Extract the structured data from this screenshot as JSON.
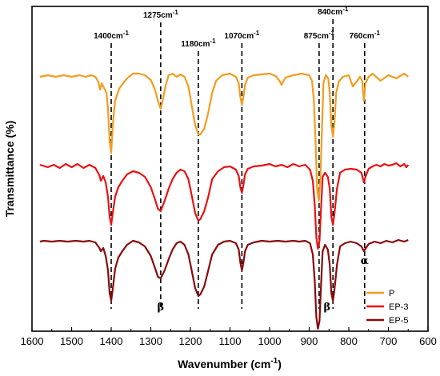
{
  "chart_data": {
    "type": "line",
    "xlabel": "Wavenumber (cm",
    "xlabel_sup": "-1",
    "xlabel_close": ")",
    "ylabel": "Transmittance (%)",
    "xlim": [
      1600,
      600
    ],
    "x_ticks": [
      "1600",
      "1500",
      "1400",
      "1300",
      "1200",
      "1100",
      "1000",
      "900",
      "800",
      "700",
      "600"
    ],
    "y_ticks_shown": false,
    "grid": false,
    "legend_position": "bottom-right",
    "series": [
      {
        "name": "P",
        "color": "#f39c1f",
        "offset": 2.1,
        "points": [
          [
            650,
            0.1
          ],
          [
            660,
            0.14
          ],
          [
            680,
            0.08
          ],
          [
            700,
            0.12
          ],
          [
            720,
            0.05
          ],
          [
            740,
            0.14
          ],
          [
            750,
            0.1
          ],
          [
            758,
            0.02
          ],
          [
            762,
            -0.2
          ],
          [
            766,
            0.05
          ],
          [
            772,
            0.1
          ],
          [
            780,
            0.04
          ],
          [
            790,
            -0.02
          ],
          [
            800,
            0.12
          ],
          [
            815,
            0.1
          ],
          [
            825,
            0.04
          ],
          [
            832,
            -0.1
          ],
          [
            836,
            -0.45
          ],
          [
            840,
            -0.65
          ],
          [
            844,
            -0.5
          ],
          [
            848,
            -0.1
          ],
          [
            852,
            0.08
          ],
          [
            858,
            0.12
          ],
          [
            864,
            0.02
          ],
          [
            868,
            -0.6
          ],
          [
            872,
            -1.2
          ],
          [
            876,
            -1.45
          ],
          [
            880,
            -1.3
          ],
          [
            884,
            -0.7
          ],
          [
            888,
            -0.2
          ],
          [
            893,
            0.05
          ],
          [
            900,
            0.12
          ],
          [
            920,
            0.14
          ],
          [
            940,
            0.12
          ],
          [
            960,
            0.09
          ],
          [
            970,
            0.0
          ],
          [
            975,
            0.05
          ],
          [
            985,
            0.11
          ],
          [
            1000,
            0.14
          ],
          [
            1020,
            0.13
          ],
          [
            1040,
            0.12
          ],
          [
            1055,
            0.09
          ],
          [
            1062,
            0.0
          ],
          [
            1066,
            -0.15
          ],
          [
            1070,
            -0.25
          ],
          [
            1074,
            -0.15
          ],
          [
            1078,
            0.02
          ],
          [
            1085,
            0.1
          ],
          [
            1100,
            0.14
          ],
          [
            1120,
            0.12
          ],
          [
            1135,
            0.05
          ],
          [
            1145,
            -0.1
          ],
          [
            1155,
            -0.35
          ],
          [
            1165,
            -0.55
          ],
          [
            1175,
            -0.62
          ],
          [
            1180,
            -0.62
          ],
          [
            1188,
            -0.5
          ],
          [
            1196,
            -0.28
          ],
          [
            1205,
            -0.02
          ],
          [
            1215,
            0.1
          ],
          [
            1225,
            0.13
          ],
          [
            1235,
            0.1
          ],
          [
            1245,
            0.14
          ],
          [
            1255,
            0.12
          ],
          [
            1262,
            0.0
          ],
          [
            1268,
            -0.15
          ],
          [
            1275,
            -0.3
          ],
          [
            1282,
            -0.2
          ],
          [
            1290,
            -0.05
          ],
          [
            1300,
            0.06
          ],
          [
            1315,
            0.12
          ],
          [
            1330,
            0.14
          ],
          [
            1345,
            0.14
          ],
          [
            1360,
            0.08
          ],
          [
            1370,
            0.02
          ],
          [
            1380,
            -0.05
          ],
          [
            1390,
            -0.2
          ],
          [
            1396,
            -0.5
          ],
          [
            1400,
            -0.85
          ],
          [
            1404,
            -0.7
          ],
          [
            1408,
            -0.3
          ],
          [
            1412,
            -0.1
          ],
          [
            1418,
            -0.04
          ],
          [
            1424,
            0.02
          ],
          [
            1428,
            -0.06
          ],
          [
            1433,
            0.04
          ],
          [
            1440,
            0.1
          ],
          [
            1450,
            0.12
          ],
          [
            1465,
            0.1
          ],
          [
            1480,
            0.12
          ],
          [
            1500,
            0.1
          ],
          [
            1520,
            0.12
          ],
          [
            1540,
            0.1
          ],
          [
            1560,
            0.12
          ],
          [
            1580,
            0.1
          ]
        ]
      },
      {
        "name": "EP-3",
        "color": "#e81212",
        "offset": 0.9,
        "points": [
          [
            650,
            0.2
          ],
          [
            655,
            0.17
          ],
          [
            660,
            0.21
          ],
          [
            670,
            0.18
          ],
          [
            680,
            0.22
          ],
          [
            690,
            0.2
          ],
          [
            700,
            0.19
          ],
          [
            710,
            0.21
          ],
          [
            720,
            0.18
          ],
          [
            730,
            0.2
          ],
          [
            740,
            0.18
          ],
          [
            750,
            0.15
          ],
          [
            758,
            0.05
          ],
          [
            762,
            -0.02
          ],
          [
            768,
            0.1
          ],
          [
            780,
            0.14
          ],
          [
            795,
            0.15
          ],
          [
            810,
            0.14
          ],
          [
            822,
            0.1
          ],
          [
            830,
            -0.1
          ],
          [
            836,
            -0.4
          ],
          [
            840,
            -0.55
          ],
          [
            844,
            -0.45
          ],
          [
            848,
            -0.1
          ],
          [
            853,
            0.05
          ],
          [
            860,
            0.1
          ],
          [
            866,
            0.05
          ],
          [
            870,
            -0.35
          ],
          [
            874,
            -0.75
          ],
          [
            878,
            -0.85
          ],
          [
            882,
            -0.7
          ],
          [
            886,
            -0.3
          ],
          [
            891,
            0.0
          ],
          [
            898,
            0.14
          ],
          [
            910,
            0.2
          ],
          [
            925,
            0.18
          ],
          [
            940,
            0.21
          ],
          [
            955,
            0.17
          ],
          [
            970,
            0.2
          ],
          [
            985,
            0.18
          ],
          [
            1000,
            0.21
          ],
          [
            1020,
            0.19
          ],
          [
            1040,
            0.18
          ],
          [
            1055,
            0.15
          ],
          [
            1062,
            0.08
          ],
          [
            1066,
            -0.05
          ],
          [
            1070,
            -0.15
          ],
          [
            1074,
            -0.08
          ],
          [
            1078,
            0.06
          ],
          [
            1085,
            0.14
          ],
          [
            1100,
            0.18
          ],
          [
            1115,
            0.17
          ],
          [
            1130,
            0.12
          ],
          [
            1145,
            0.02
          ],
          [
            1155,
            -0.2
          ],
          [
            1165,
            -0.38
          ],
          [
            1175,
            -0.48
          ],
          [
            1180,
            -0.5
          ],
          [
            1188,
            -0.4
          ],
          [
            1196,
            -0.2
          ],
          [
            1205,
            0.02
          ],
          [
            1215,
            0.12
          ],
          [
            1225,
            0.14
          ],
          [
            1235,
            0.1
          ],
          [
            1245,
            0.02
          ],
          [
            1255,
            -0.1
          ],
          [
            1265,
            -0.25
          ],
          [
            1275,
            -0.38
          ],
          [
            1282,
            -0.35
          ],
          [
            1290,
            -0.22
          ],
          [
            1300,
            -0.08
          ],
          [
            1315,
            0.05
          ],
          [
            1330,
            0.1
          ],
          [
            1345,
            0.12
          ],
          [
            1360,
            0.08
          ],
          [
            1372,
            0.0
          ],
          [
            1382,
            -0.08
          ],
          [
            1390,
            -0.2
          ],
          [
            1396,
            -0.4
          ],
          [
            1400,
            -0.55
          ],
          [
            1404,
            -0.45
          ],
          [
            1408,
            -0.2
          ],
          [
            1414,
            -0.02
          ],
          [
            1420,
            0.06
          ],
          [
            1426,
            0.0
          ],
          [
            1430,
            0.07
          ],
          [
            1440,
            0.16
          ],
          [
            1455,
            0.2
          ],
          [
            1470,
            0.16
          ],
          [
            1485,
            0.21
          ],
          [
            1500,
            0.17
          ],
          [
            1515,
            0.21
          ],
          [
            1530,
            0.16
          ],
          [
            1545,
            0.2
          ],
          [
            1560,
            0.17
          ],
          [
            1580,
            0.2
          ]
        ]
      },
      {
        "name": "EP-5",
        "color": "#8b0a0a",
        "offset": 0.0,
        "points": [
          [
            650,
            0.16
          ],
          [
            660,
            0.14
          ],
          [
            675,
            0.16
          ],
          [
            690,
            0.13
          ],
          [
            705,
            0.15
          ],
          [
            720,
            0.12
          ],
          [
            735,
            0.14
          ],
          [
            750,
            0.11
          ],
          [
            758,
            0.05
          ],
          [
            762,
            0.02
          ],
          [
            768,
            0.08
          ],
          [
            780,
            0.12
          ],
          [
            795,
            0.14
          ],
          [
            810,
            0.12
          ],
          [
            822,
            0.08
          ],
          [
            830,
            -0.15
          ],
          [
            836,
            -0.45
          ],
          [
            840,
            -0.6
          ],
          [
            844,
            -0.5
          ],
          [
            848,
            -0.15
          ],
          [
            853,
            0.04
          ],
          [
            860,
            0.1
          ],
          [
            866,
            0.02
          ],
          [
            870,
            -0.4
          ],
          [
            874,
            -0.85
          ],
          [
            878,
            -0.95
          ],
          [
            882,
            -0.8
          ],
          [
            886,
            -0.35
          ],
          [
            891,
            -0.02
          ],
          [
            898,
            0.12
          ],
          [
            910,
            0.15
          ],
          [
            925,
            0.14
          ],
          [
            940,
            0.15
          ],
          [
            960,
            0.14
          ],
          [
            980,
            0.15
          ],
          [
            1000,
            0.14
          ],
          [
            1020,
            0.15
          ],
          [
            1040,
            0.13
          ],
          [
            1055,
            0.1
          ],
          [
            1062,
            0.02
          ],
          [
            1066,
            -0.12
          ],
          [
            1070,
            -0.22
          ],
          [
            1074,
            -0.12
          ],
          [
            1078,
            0.04
          ],
          [
            1085,
            0.12
          ],
          [
            1100,
            0.15
          ],
          [
            1115,
            0.14
          ],
          [
            1130,
            0.1
          ],
          [
            1145,
            -0.02
          ],
          [
            1155,
            -0.22
          ],
          [
            1165,
            -0.42
          ],
          [
            1175,
            -0.52
          ],
          [
            1180,
            -0.54
          ],
          [
            1188,
            -0.44
          ],
          [
            1196,
            -0.24
          ],
          [
            1205,
            -0.02
          ],
          [
            1215,
            0.1
          ],
          [
            1225,
            0.14
          ],
          [
            1235,
            0.12
          ],
          [
            1245,
            0.04
          ],
          [
            1255,
            -0.08
          ],
          [
            1265,
            -0.22
          ],
          [
            1275,
            -0.32
          ],
          [
            1282,
            -0.3
          ],
          [
            1290,
            -0.18
          ],
          [
            1300,
            -0.04
          ],
          [
            1315,
            0.08
          ],
          [
            1330,
            0.13
          ],
          [
            1345,
            0.15
          ],
          [
            1360,
            0.1
          ],
          [
            1372,
            0.02
          ],
          [
            1382,
            -0.06
          ],
          [
            1390,
            -0.2
          ],
          [
            1396,
            -0.45
          ],
          [
            1400,
            -0.6
          ],
          [
            1404,
            -0.5
          ],
          [
            1408,
            -0.22
          ],
          [
            1414,
            -0.04
          ],
          [
            1420,
            0.06
          ],
          [
            1426,
            0.02
          ],
          [
            1430,
            0.06
          ],
          [
            1440,
            0.13
          ],
          [
            1455,
            0.15
          ],
          [
            1470,
            0.14
          ],
          [
            1490,
            0.15
          ],
          [
            1510,
            0.14
          ],
          [
            1530,
            0.15
          ],
          [
            1550,
            0.14
          ],
          [
            1570,
            0.15
          ],
          [
            1580,
            0.14
          ]
        ]
      }
    ],
    "reference_lines": [
      {
        "x": 1400,
        "label": "1400cm",
        "sup": "-1"
      },
      {
        "x": 1275,
        "label": "1275cm",
        "sup": "-1"
      },
      {
        "x": 1180,
        "label": "1180cm",
        "sup": "-1"
      },
      {
        "x": 1070,
        "label": "1070cm",
        "sup": "-1"
      },
      {
        "x": 875,
        "label": "875cm",
        "sup": "-1"
      },
      {
        "x": 840,
        "label": "840cm",
        "sup": "-1"
      },
      {
        "x": 760,
        "label": "760cm",
        "sup": "-1"
      }
    ],
    "annotations": [
      {
        "text": "β",
        "x": 1275
      },
      {
        "text": "β",
        "x": 855
      },
      {
        "text": "α",
        "x": 760
      }
    ]
  }
}
